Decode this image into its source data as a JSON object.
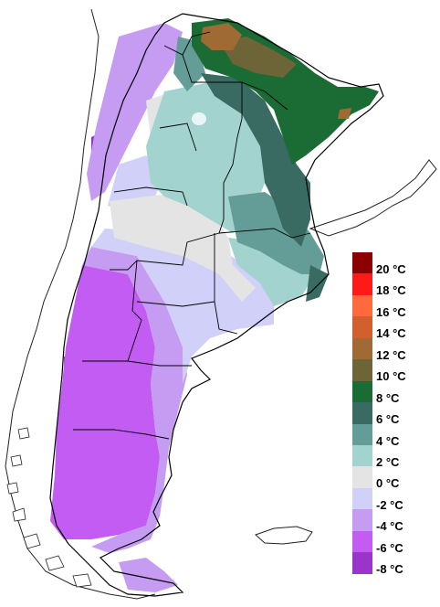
{
  "legend": {
    "colors": [
      "#8b0000",
      "#ff1a1a",
      "#ff6a3d",
      "#d2602e",
      "#a06a34",
      "#6d6437",
      "#1b6b34",
      "#3a6b63",
      "#649d97",
      "#a3d3cf",
      "#e4e4e4",
      "#d0d0f8",
      "#c59cf2",
      "#c35cf2",
      "#9a35cc"
    ],
    "labels": [
      "20 °C",
      "18 °C",
      "16 °C",
      "14 °C",
      "12 °C",
      "10 °C",
      "8 °C",
      "6 °C",
      "4 °C",
      "2 °C",
      "0 °C",
      "-2 °C",
      "-4 °C",
      "-6 °C",
      "-8 °C"
    ]
  },
  "map": {
    "land_color": "#ffffff",
    "outline_color": "#000000"
  }
}
